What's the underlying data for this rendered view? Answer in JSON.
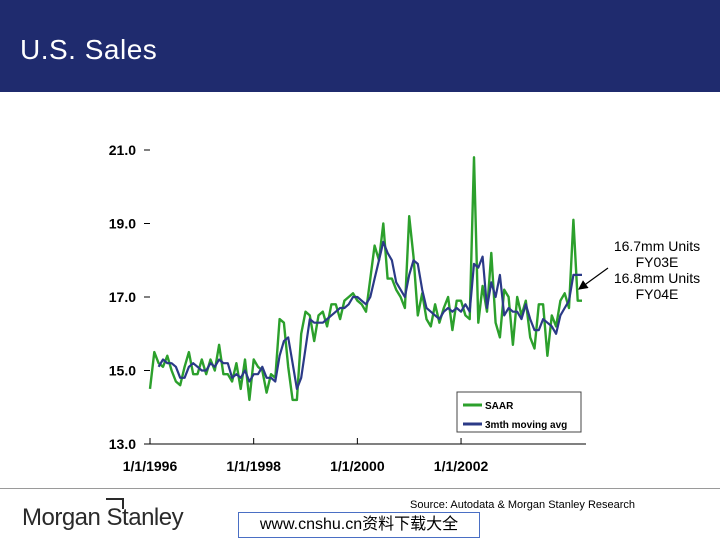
{
  "header": {
    "title": "U.S. Sales",
    "background": "#1f2b6e"
  },
  "annotation": {
    "lines": [
      "16.7mm Units",
      "FY03E",
      "16.8mm Units",
      "FY04E"
    ]
  },
  "source": "Source: Autodata & Morgan Stanley Research",
  "logo": {
    "text": "Morgan Stanley"
  },
  "watermark": "www.cnshu.cn资料下载大全",
  "chart_data": {
    "type": "line",
    "title": "U.S. Sales",
    "xlabel": "",
    "ylabel": "",
    "ylim": [
      13.0,
      21.0
    ],
    "y_ticks": [
      "13.0",
      "15.0",
      "17.0",
      "19.0",
      "21.0"
    ],
    "x_tick_labels": [
      "1/1/1996",
      "1/1/1998",
      "1/1/2000",
      "1/1/2002"
    ],
    "x_start": "1/1/1996",
    "x_end": "7/1/2003",
    "series": [
      {
        "name": "SAAR",
        "color": "#2ca02c",
        "values": [
          14.5,
          15.5,
          15.2,
          15.1,
          15.4,
          15.0,
          14.7,
          14.6,
          15.1,
          15.5,
          14.9,
          14.9,
          15.3,
          14.9,
          15.3,
          15.0,
          15.7,
          14.9,
          14.9,
          14.7,
          15.2,
          14.5,
          15.3,
          14.2,
          15.3,
          15.1,
          15.0,
          14.4,
          14.9,
          14.8,
          16.4,
          16.3,
          15.1,
          14.2,
          14.2,
          16.0,
          16.6,
          16.5,
          15.8,
          16.5,
          16.6,
          16.2,
          16.8,
          16.8,
          16.4,
          16.9,
          17.0,
          17.1,
          16.9,
          16.8,
          16.6,
          17.5,
          18.4,
          18.0,
          19.0,
          17.5,
          17.5,
          17.2,
          17.0,
          16.7,
          19.2,
          18.1,
          16.5,
          17.1,
          16.4,
          16.2,
          16.8,
          16.3,
          16.7,
          17.0,
          16.1,
          16.9,
          16.9,
          16.5,
          16.4,
          20.8,
          16.3,
          17.3,
          16.6,
          18.2,
          16.3,
          15.9,
          17.2,
          17.0,
          15.7,
          17.0,
          16.5,
          16.9,
          15.9,
          15.6,
          16.8,
          16.8,
          15.4,
          16.5,
          16.2,
          16.9,
          17.1,
          16.7,
          19.1,
          16.9,
          16.9
        ]
      },
      {
        "name": "3mth moving avg",
        "color": "#2b3a87",
        "values": [
          null,
          null,
          15.1,
          15.3,
          15.2,
          15.2,
          15.1,
          14.8,
          14.8,
          15.1,
          15.2,
          15.1,
          15.0,
          15.0,
          15.2,
          15.1,
          15.3,
          15.2,
          15.2,
          14.8,
          14.9,
          14.8,
          15.0,
          14.7,
          14.9,
          14.9,
          15.1,
          14.8,
          14.8,
          14.7,
          15.4,
          15.8,
          15.9,
          15.2,
          14.5,
          14.8,
          15.6,
          16.4,
          16.3,
          16.3,
          16.3,
          16.4,
          16.5,
          16.6,
          16.7,
          16.7,
          16.8,
          17.0,
          17.0,
          16.9,
          16.8,
          17.0,
          17.5,
          18.0,
          18.5,
          18.2,
          18.0,
          17.4,
          17.2,
          17.0,
          17.6,
          18.0,
          17.9,
          17.2,
          16.7,
          16.6,
          16.5,
          16.4,
          16.6,
          16.7,
          16.6,
          16.7,
          16.6,
          16.8,
          16.6,
          17.9,
          17.8,
          18.1,
          16.7,
          17.4,
          17.0,
          17.6,
          16.5,
          16.7,
          16.6,
          16.6,
          16.4,
          16.8,
          16.4,
          16.1,
          16.1,
          16.4,
          16.3,
          16.2,
          16.0,
          16.5,
          16.7,
          16.9,
          17.6,
          17.6,
          17.6
        ]
      }
    ],
    "legend": {
      "position": "bottom-right",
      "entries": [
        "SAAR",
        "3mth moving avg"
      ]
    }
  }
}
